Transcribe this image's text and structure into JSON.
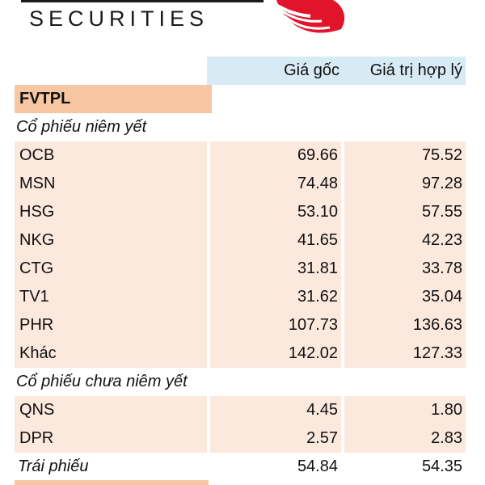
{
  "header": {
    "brand": "SECURITIES"
  },
  "table": {
    "columns": [
      "Giá gốc",
      "Giá trị hợp lý"
    ],
    "section_label": "FVTPL",
    "listed_label": "Cổ phiếu niêm yết",
    "listed_rows": [
      {
        "name": "OCB",
        "cost": "69.66",
        "fair": "75.52"
      },
      {
        "name": "MSN",
        "cost": "74.48",
        "fair": "97.28"
      },
      {
        "name": "HSG",
        "cost": "53.10",
        "fair": "57.55"
      },
      {
        "name": "NKG",
        "cost": "41.65",
        "fair": "42.23"
      },
      {
        "name": "CTG",
        "cost": "31.81",
        "fair": "33.78"
      },
      {
        "name": "TV1",
        "cost": "31.62",
        "fair": "35.04"
      },
      {
        "name": "PHR",
        "cost": "107.73",
        "fair": "136.63"
      },
      {
        "name": "Khác",
        "cost": "142.02",
        "fair": "127.33"
      }
    ],
    "unlisted_label": "Cổ phiếu chưa niêm yết",
    "unlisted_rows": [
      {
        "name": "QNS",
        "cost": "4.45",
        "fair": "1.80"
      },
      {
        "name": "DPR",
        "cost": "2.57",
        "fair": "2.83"
      }
    ],
    "bonds": {
      "name": "Trái phiếu",
      "cost": "54.84",
      "fair": "54.35"
    }
  },
  "colors": {
    "header_fill": "#d8eaf4",
    "section_fill": "#f7c7a3",
    "row_fill": "#fce9dd",
    "logo_red": "#e0152b"
  },
  "icons": [
    "logo-mark-icon"
  ]
}
